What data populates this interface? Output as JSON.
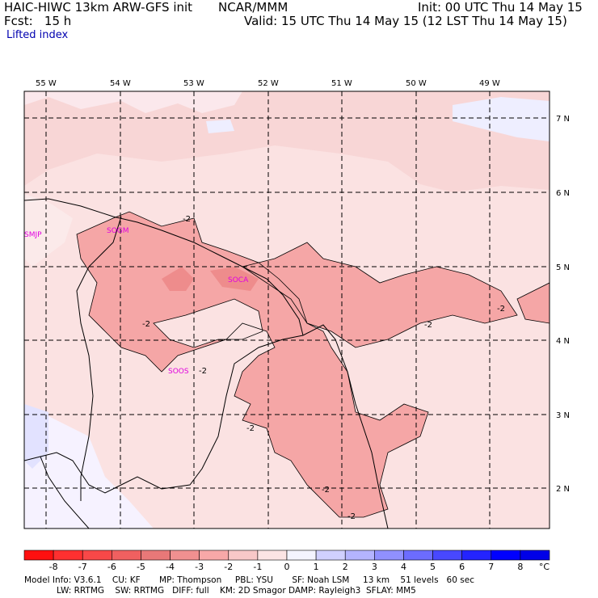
{
  "header": {
    "model": "HAIC-HIWC 13km ARW-GFS init",
    "org": "NCAR/MMM",
    "init": "Init: 00 UTC Thu 14 May 15",
    "fcst": "Fcst:   15 h",
    "valid": "Valid: 15 UTC Thu 14 May 15 (12 LST Thu 14 May 15)",
    "field": "Lifted index"
  },
  "lon_labels": [
    "55 W",
    "54 W",
    "53 W",
    "52 W",
    "51 W",
    "50 W",
    "49 W"
  ],
  "lat_labels": [
    "7 N",
    "6 N",
    "5 N",
    "4 N",
    "3 N",
    "2 N"
  ],
  "stations": [
    "SMJP",
    "SOGM",
    "SOCA",
    "SOOS"
  ],
  "contour_label": "-2",
  "colorbar": {
    "levels": [
      "-8",
      "-7",
      "-6",
      "-5",
      "-4",
      "-3",
      "-2",
      "-1",
      "0",
      "1",
      "2",
      "3",
      "4",
      "5",
      "6",
      "7",
      "8"
    ],
    "unit": "°C",
    "colors": [
      "#ff1010",
      "#ff3030",
      "#f84848",
      "#f06060",
      "#e87878",
      "#f09090",
      "#f8a8a8",
      "#f8c8c8",
      "#fce4e4",
      "#f4f4ff",
      "#d0d0ff",
      "#b4b4ff",
      "#9090ff",
      "#6c6cff",
      "#4848ff",
      "#2424ff",
      "#0000ff",
      "#0000e8"
    ]
  },
  "footer": {
    "line1": "Model Info: V3.6.1    CU: KF       MP: Thompson     PBL: YSU       SF: Noah LSM     13 km    51 levels   60 sec",
    "line2": "            LW: RRTMG    SW: RRTMG   DIFF: full    KM: 2D Smagor DAMP: Rayleigh3  SFLAY: MM5"
  }
}
